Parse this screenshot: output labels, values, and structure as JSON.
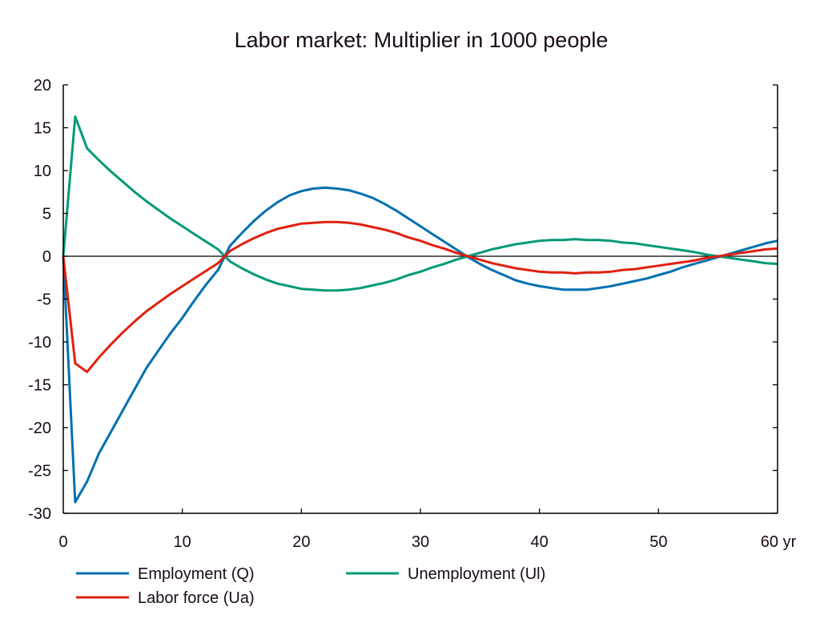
{
  "chart_data": {
    "type": "line",
    "title": "Labor market: Multiplier in 1000 people",
    "xlabel": "",
    "ylabel": "",
    "x_unit_suffix": "yr",
    "xlim": [
      0,
      60
    ],
    "ylim": [
      -30,
      20
    ],
    "xticks": [
      0,
      10,
      20,
      30,
      40,
      50,
      60
    ],
    "xtick_labels": [
      "0",
      "10",
      "20",
      "30",
      "40",
      "50",
      "60 yr"
    ],
    "yticks": [
      20,
      15,
      10,
      5,
      0,
      -5,
      -10,
      -15,
      -20,
      -25,
      -30
    ],
    "ytick_labels": [
      "20",
      "15",
      "10",
      "5",
      "0",
      "-5",
      "-10",
      "-15",
      "-20",
      "-25",
      "-30"
    ],
    "grid": false,
    "zero_line": true,
    "legend_position": "bottom",
    "x": [
      0,
      1,
      2,
      3,
      4,
      5,
      6,
      7,
      8,
      9,
      10,
      11,
      12,
      13,
      14,
      15,
      16,
      17,
      18,
      19,
      20,
      21,
      22,
      23,
      24,
      25,
      26,
      27,
      28,
      29,
      30,
      31,
      32,
      33,
      34,
      35,
      36,
      37,
      38,
      39,
      40,
      41,
      42,
      43,
      44,
      45,
      46,
      47,
      48,
      49,
      50,
      51,
      52,
      53,
      54,
      55,
      56,
      57,
      58,
      59,
      60
    ],
    "series": [
      {
        "name": "Employment (Q)",
        "color": "#0070b0",
        "values": [
          0,
          -28.7,
          -26.3,
          -23,
          -20.5,
          -18,
          -15.5,
          -13,
          -11,
          -9,
          -7.2,
          -5.2,
          -3.3,
          -1.6,
          1.2,
          2.7,
          4.1,
          5.3,
          6.3,
          7.1,
          7.6,
          7.9,
          8.0,
          7.9,
          7.7,
          7.3,
          6.8,
          6.1,
          5.3,
          4.4,
          3.5,
          2.6,
          1.7,
          0.8,
          -0.1,
          -0.9,
          -1.6,
          -2.2,
          -2.8,
          -3.2,
          -3.5,
          -3.7,
          -3.9,
          -3.9,
          -3.9,
          -3.7,
          -3.5,
          -3.2,
          -2.9,
          -2.6,
          -2.2,
          -1.8,
          -1.3,
          -0.9,
          -0.5,
          -0.1,
          0.3,
          0.7,
          1.1,
          1.5,
          1.8
        ]
      },
      {
        "name": "Unemployment (Ul)",
        "color": "#009a78",
        "values": [
          0,
          16.3,
          12.6,
          11.2,
          9.9,
          8.7,
          7.5,
          6.4,
          5.4,
          4.4,
          3.5,
          2.6,
          1.7,
          0.8,
          -0.6,
          -1.4,
          -2.1,
          -2.7,
          -3.2,
          -3.5,
          -3.8,
          -3.9,
          -4.0,
          -4.0,
          -3.9,
          -3.7,
          -3.4,
          -3.1,
          -2.7,
          -2.2,
          -1.8,
          -1.3,
          -0.9,
          -0.4,
          0.0,
          0.4,
          0.8,
          1.1,
          1.4,
          1.6,
          1.8,
          1.9,
          1.9,
          2.0,
          1.9,
          1.9,
          1.8,
          1.6,
          1.5,
          1.3,
          1.1,
          0.9,
          0.7,
          0.5,
          0.2,
          0.0,
          -0.2,
          -0.4,
          -0.6,
          -0.8,
          -0.9
        ]
      },
      {
        "name": "Labor force (Ua)",
        "color": "#e02010",
        "values": [
          0,
          -12.5,
          -13.5,
          -11.8,
          -10.3,
          -8.9,
          -7.6,
          -6.4,
          -5.4,
          -4.4,
          -3.5,
          -2.6,
          -1.7,
          -0.8,
          0.6,
          1.4,
          2.1,
          2.7,
          3.2,
          3.5,
          3.8,
          3.9,
          4.0,
          4.0,
          3.9,
          3.7,
          3.4,
          3.1,
          2.7,
          2.2,
          1.8,
          1.3,
          0.9,
          0.4,
          0.0,
          -0.4,
          -0.8,
          -1.1,
          -1.4,
          -1.6,
          -1.8,
          -1.9,
          -1.9,
          -2.0,
          -1.9,
          -1.9,
          -1.8,
          -1.6,
          -1.5,
          -1.3,
          -1.1,
          -0.9,
          -0.7,
          -0.5,
          -0.2,
          0.0,
          0.2,
          0.4,
          0.6,
          0.8,
          0.9
        ]
      }
    ],
    "legend": [
      {
        "label": "Employment (Q)",
        "color": "#0070b0"
      },
      {
        "label": "Unemployment (Ul)",
        "color": "#009a78"
      },
      {
        "label": "Labor force (Ua)",
        "color": "#e02010"
      }
    ]
  }
}
